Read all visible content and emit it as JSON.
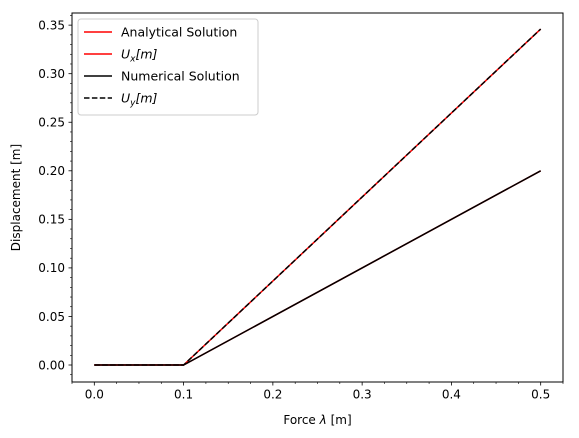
{
  "chart_data": {
    "type": "line",
    "title": "",
    "xlabel": "Force",
    "xlabel_symbol": "λ",
    "xlabel_unit": "[m]",
    "ylabel": "Displacement [m]",
    "xlim": [
      -0.025,
      0.525
    ],
    "ylim": [
      -0.0175,
      0.3625
    ],
    "xticks": [
      {
        "value": 0.0,
        "label": "0.0"
      },
      {
        "value": 0.1,
        "label": "0.1"
      },
      {
        "value": 0.2,
        "label": "0.2"
      },
      {
        "value": 0.3,
        "label": "0.3"
      },
      {
        "value": 0.4,
        "label": "0.4"
      },
      {
        "value": 0.5,
        "label": "0.5"
      }
    ],
    "yticks": [
      {
        "value": 0.0,
        "label": "0.00"
      },
      {
        "value": 0.05,
        "label": "0.05"
      },
      {
        "value": 0.1,
        "label": "0.10"
      },
      {
        "value": 0.15,
        "label": "0.15"
      },
      {
        "value": 0.2,
        "label": "0.20"
      },
      {
        "value": 0.25,
        "label": "0.25"
      },
      {
        "value": 0.3,
        "label": "0.30"
      },
      {
        "value": 0.35,
        "label": "0.35"
      }
    ],
    "grid": false,
    "legend_position": "top-left",
    "series": [
      {
        "name": "Analytical Solution",
        "color": "#ff0000",
        "dash": "solid",
        "x": [
          0.0,
          0.1,
          0.5
        ],
        "y": [
          0.0,
          0.0,
          0.2
        ]
      },
      {
        "name": "",
        "legend_main": "U",
        "legend_sub": "x",
        "legend_suffix": "[m]",
        "color": "#ff0000",
        "dash": "solid",
        "x": [
          0.0,
          0.1,
          0.5
        ],
        "y": [
          0.0,
          0.0,
          0.346
        ]
      },
      {
        "name": "Numerical Solution",
        "color": "#000000",
        "dash": "solid",
        "x": [
          0.0,
          0.1,
          0.5
        ],
        "y": [
          0.0,
          0.0,
          0.2
        ]
      },
      {
        "name": "",
        "legend_main": "U",
        "legend_sub": "y",
        "legend_suffix": "[m]",
        "color": "#000000",
        "dash": "dashed",
        "x": [
          0.0,
          0.1,
          0.5
        ],
        "y": [
          0.0,
          0.0,
          0.346
        ]
      }
    ]
  }
}
